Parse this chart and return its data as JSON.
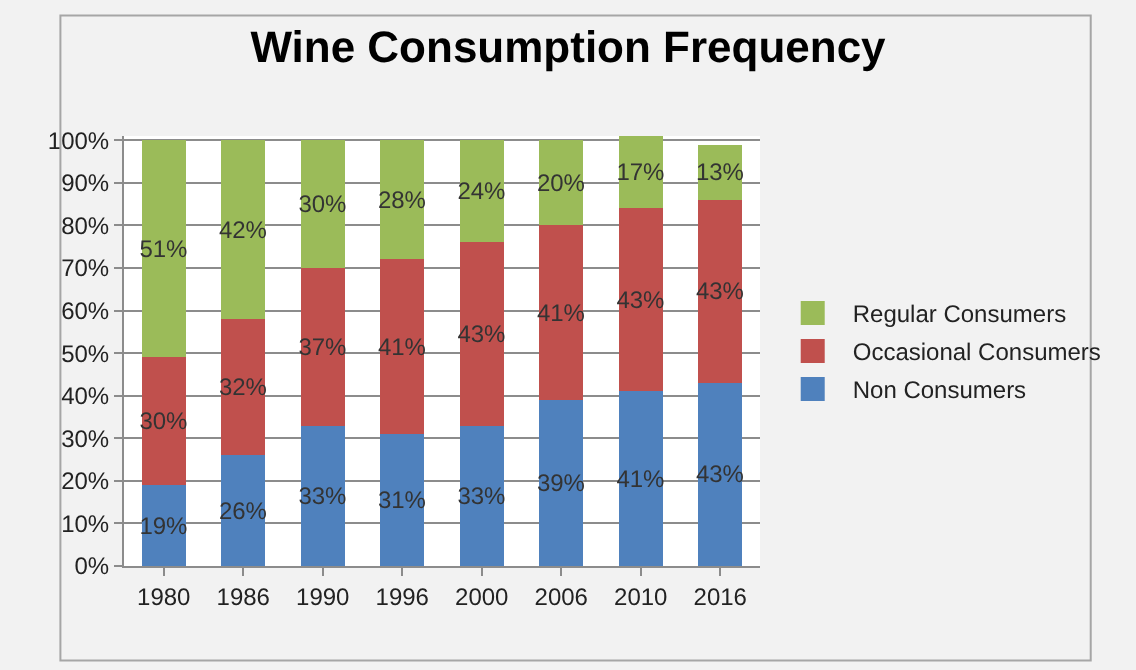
{
  "chart_data": {
    "type": "bar",
    "title": "Wine Consumption Frequency",
    "stacked": true,
    "categories": [
      "1980",
      "1986",
      "1990",
      "1996",
      "2000",
      "2006",
      "2010",
      "2016"
    ],
    "series": [
      {
        "name": "Non Consumers",
        "color": "#4f81bd",
        "values": [
          19,
          26,
          33,
          31,
          33,
          39,
          41,
          43
        ],
        "value_labels": [
          "19%",
          "26%",
          "33%",
          "31%",
          "33%",
          "39%",
          "41%",
          "43%"
        ]
      },
      {
        "name": "Occasional Consumers",
        "color": "#c0504d",
        "values": [
          30,
          32,
          37,
          41,
          43,
          41,
          43,
          43
        ],
        "value_labels": [
          "30%",
          "32%",
          "37%",
          "41%",
          "43%",
          "41%",
          "43%",
          "43%"
        ]
      },
      {
        "name": "Regular Consumers",
        "color": "#9bbb59",
        "values": [
          51,
          42,
          30,
          28,
          24,
          20,
          17,
          13
        ],
        "value_labels": [
          "51%",
          "42%",
          "30%",
          "28%",
          "24%",
          "20%",
          "17%",
          "13%"
        ]
      }
    ],
    "ylim": [
      0,
      101
    ],
    "yticks": [
      {
        "value": 0,
        "label": "0%"
      },
      {
        "value": 10,
        "label": "10%"
      },
      {
        "value": 20,
        "label": "20%"
      },
      {
        "value": 30,
        "label": "30%"
      },
      {
        "value": 40,
        "label": "40%"
      },
      {
        "value": 50,
        "label": "50%"
      },
      {
        "value": 60,
        "label": "60%"
      },
      {
        "value": 70,
        "label": "70%"
      },
      {
        "value": 80,
        "label": "80%"
      },
      {
        "value": 90,
        "label": "90%"
      },
      {
        "value": 100,
        "label": "100%"
      }
    ],
    "grid": "y",
    "legend": "right"
  }
}
